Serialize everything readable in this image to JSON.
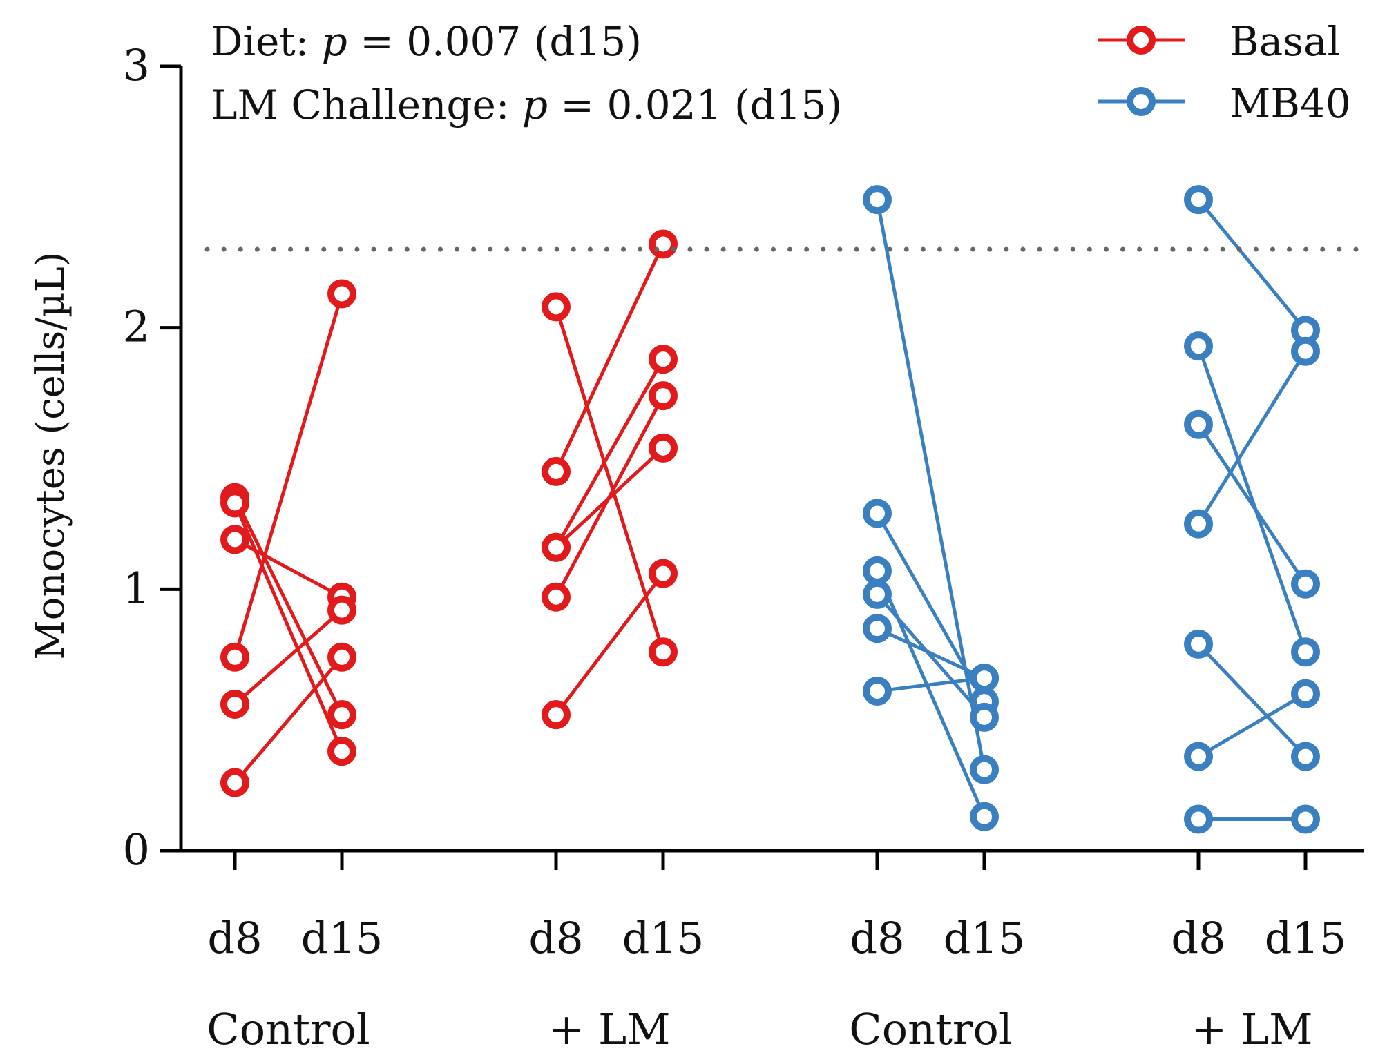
{
  "chart_data": {
    "type": "line",
    "ylabel": "Monocytes (cells/µL)",
    "ylim": [
      0,
      3
    ],
    "yticks": [
      "0",
      "1",
      "2",
      "3"
    ],
    "reference_line": {
      "y": 2.3,
      "style": "dotted"
    },
    "annotations": [
      {
        "prefix": "Diet: ",
        "p_symbol": "p",
        "suffix": " = 0.007 (d15)"
      },
      {
        "prefix": "LM Challenge: ",
        "p_symbol": "p",
        "suffix": " = 0.021 (d15)"
      }
    ],
    "legend": {
      "position": "top-right",
      "entries": [
        {
          "name": "Basal",
          "color": "#e31a1c"
        },
        {
          "name": "MB40",
          "color": "#3a7fc0"
        }
      ]
    },
    "groups": [
      {
        "label": "Control",
        "diet": "Basal",
        "color": "#e31a1c",
        "timepoints": [
          "d8",
          "d15"
        ],
        "pairs": [
          [
            1.35,
            0.52
          ],
          [
            1.33,
            0.38
          ],
          [
            1.19,
            0.97
          ],
          [
            0.74,
            2.13
          ],
          [
            0.56,
            0.92
          ],
          [
            0.26,
            0.74
          ]
        ]
      },
      {
        "label": "+ LM",
        "diet": "Basal",
        "color": "#e31a1c",
        "timepoints": [
          "d8",
          "d15"
        ],
        "pairs": [
          [
            2.08,
            0.76
          ],
          [
            1.45,
            2.32
          ],
          [
            1.16,
            1.54
          ],
          [
            0.97,
            1.74
          ],
          [
            0.52,
            1.06
          ],
          [
            1.16,
            1.88
          ]
        ]
      },
      {
        "label": "Control",
        "diet": "MB40",
        "color": "#3a7fc0",
        "timepoints": [
          "d8",
          "d15"
        ],
        "pairs": [
          [
            2.49,
            0.31
          ],
          [
            1.29,
            0.57
          ],
          [
            1.07,
            0.13
          ],
          [
            0.98,
            0.51
          ],
          [
            0.85,
            0.66
          ],
          [
            0.61,
            0.66
          ]
        ]
      },
      {
        "label": "+ LM",
        "diet": "MB40",
        "color": "#3a7fc0",
        "timepoints": [
          "d8",
          "d15"
        ],
        "pairs": [
          [
            2.49,
            1.99
          ],
          [
            1.93,
            0.76
          ],
          [
            1.63,
            1.02
          ],
          [
            1.25,
            1.91
          ],
          [
            0.79,
            0.36
          ],
          [
            0.36,
            0.6
          ],
          [
            0.12,
            0.12
          ]
        ]
      }
    ]
  }
}
